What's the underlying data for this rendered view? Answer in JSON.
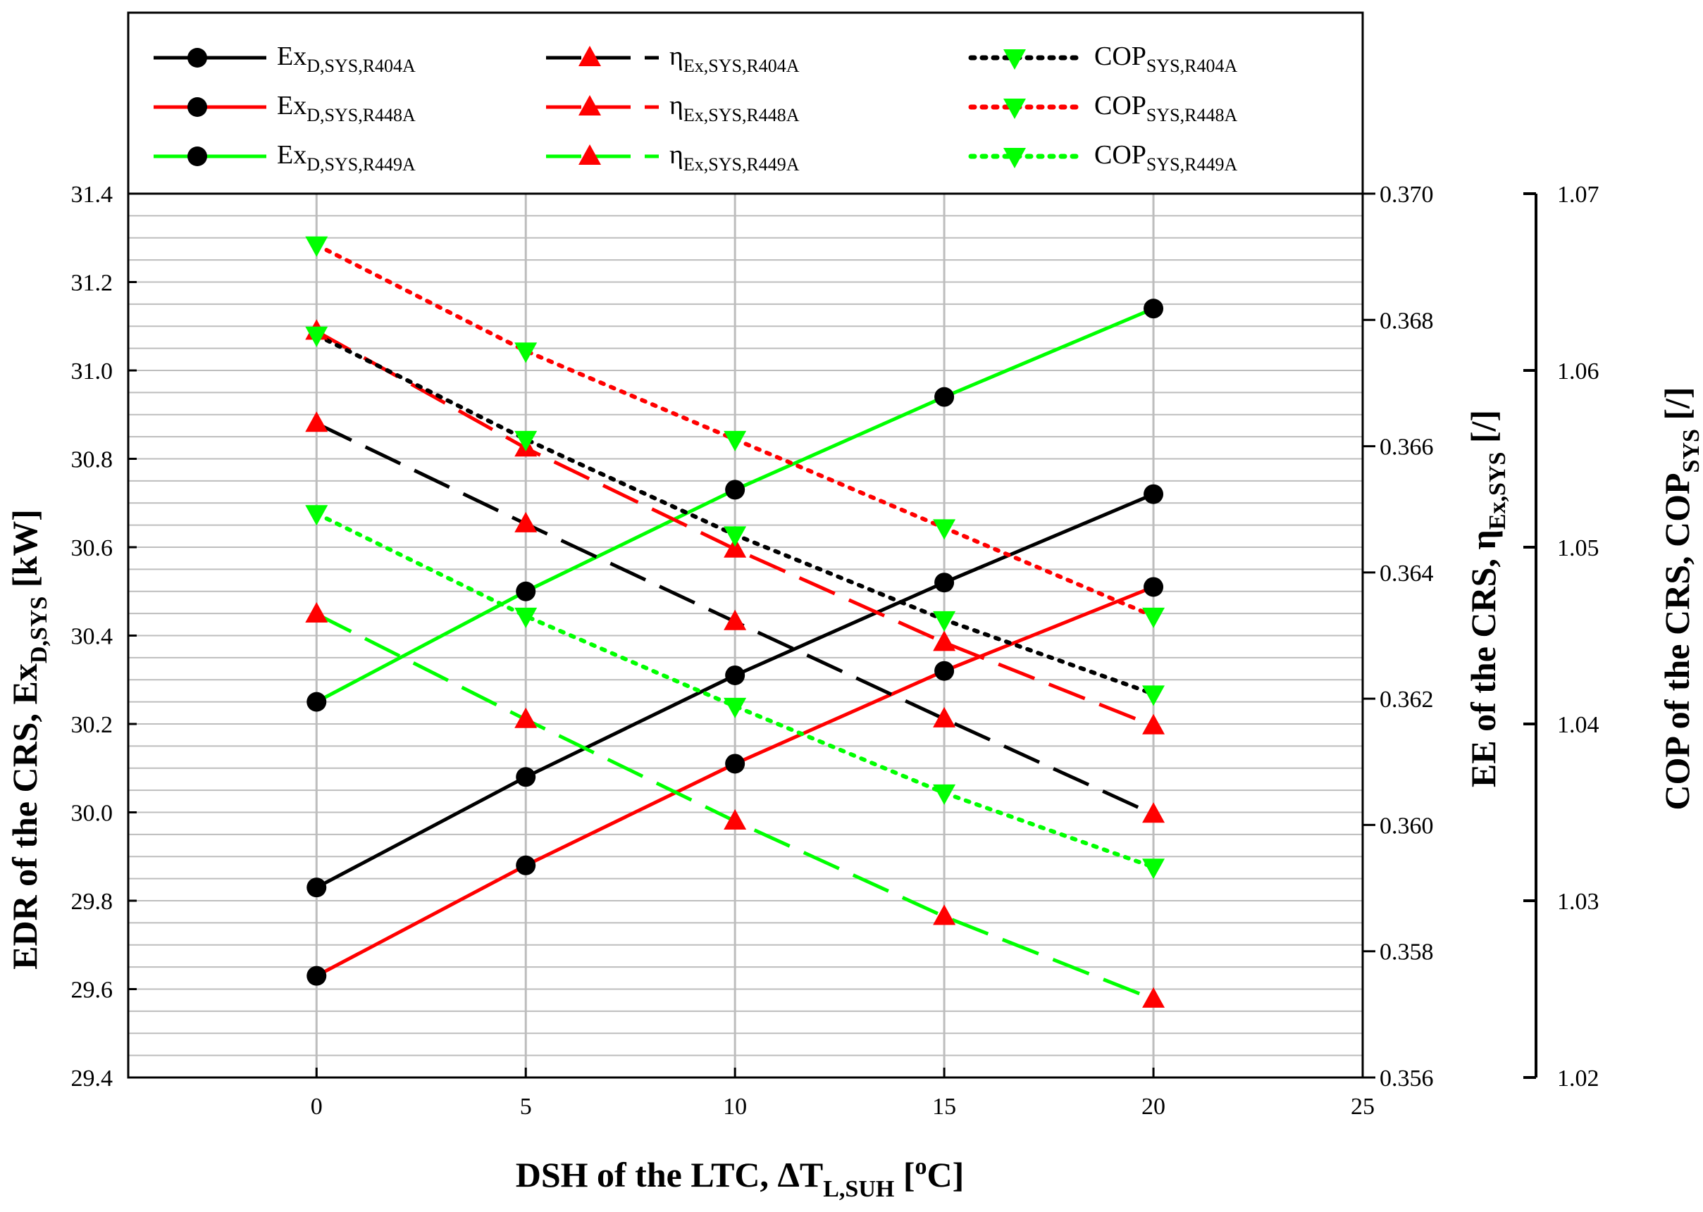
{
  "chart_data": {
    "type": "line",
    "x": [
      0,
      5,
      10,
      15,
      20
    ],
    "xlim": [
      -4.5,
      25
    ],
    "x_ticks": [
      "0",
      "5",
      "10",
      "15",
      "20",
      "25"
    ],
    "xlabel": {
      "main": "DSH of the LTC, ΔT",
      "sub": "L,SUH",
      "open": " [",
      "sup": "o",
      "unit": "C]"
    },
    "left_axis": {
      "label": {
        "main": "EDR of the CRS, Ex",
        "sub": "D,SYS",
        "unit": " [kW]"
      },
      "ylim": [
        29.4,
        31.4
      ],
      "ticks": [
        "29.4",
        "29.6",
        "29.8",
        "30.0",
        "30.2",
        "30.4",
        "30.6",
        "30.8",
        "31.0",
        "31.2",
        "31.4"
      ]
    },
    "mid_axis": {
      "label": {
        "main": "EE of the CRS, η",
        "sub": "Ex,SYS",
        "unit": " [/]"
      },
      "ylim": [
        0.356,
        0.37
      ],
      "ticks": [
        "0.356",
        "0.358",
        "0.360",
        "0.362",
        "0.364",
        "0.366",
        "0.368",
        "0.370"
      ]
    },
    "right_axis": {
      "label": {
        "main": "COP of the CRS, COP",
        "sub": "SYS",
        "unit": " [/]"
      },
      "ylim": [
        1.02,
        1.07
      ],
      "ticks": [
        "1.02",
        "1.03",
        "1.04",
        "1.05",
        "1.06",
        "1.07"
      ]
    },
    "colors": {
      "R404A": "#000000",
      "R448A": "#ff0000",
      "R449A": "#00ff00"
    },
    "series": [
      {
        "name": "Ex_D,SYS,R404A",
        "legend_main": "Ex",
        "legend_sub": "D,SYS,R404A",
        "axis": "left",
        "style": "solid",
        "marker": "circle",
        "line_color": "#000000",
        "marker_color": "#000000",
        "values": [
          29.83,
          30.08,
          30.31,
          30.52,
          30.72
        ]
      },
      {
        "name": "Ex_D,SYS,R448A",
        "legend_main": "Ex",
        "legend_sub": "D,SYS,R448A",
        "axis": "left",
        "style": "solid",
        "marker": "circle",
        "line_color": "#ff0000",
        "marker_color": "#000000",
        "values": [
          29.63,
          29.88,
          30.11,
          30.32,
          30.51
        ]
      },
      {
        "name": "Ex_D,SYS,R449A",
        "legend_main": "Ex",
        "legend_sub": "D,SYS,R449A",
        "axis": "left",
        "style": "solid",
        "marker": "circle",
        "line_color": "#00ff00",
        "marker_color": "#000000",
        "values": [
          30.25,
          30.5,
          30.73,
          30.94,
          31.14
        ]
      },
      {
        "name": "eta_Ex,SYS,R404A",
        "legend_main": "η",
        "legend_sub": "Ex,SYS,R404A",
        "axis": "mid",
        "style": "dashed",
        "marker": "triangle-up",
        "line_color": "#000000",
        "marker_color": "#ff0000",
        "values": [
          0.36636,
          0.36477,
          0.36322,
          0.36168,
          0.36017
        ]
      },
      {
        "name": "eta_Ex,SYS,R448A",
        "legend_main": "η",
        "legend_sub": "Ex,SYS,R448A",
        "axis": "mid",
        "style": "dashed",
        "marker": "triangle-up",
        "line_color": "#ff0000",
        "marker_color": "#ff0000",
        "values": [
          0.36782,
          0.36597,
          0.36437,
          0.36289,
          0.36157
        ]
      },
      {
        "name": "eta_Ex,SYS,R449A",
        "legend_main": "η",
        "legend_sub": "Ex,SYS,R449A",
        "axis": "mid",
        "style": "dashed",
        "marker": "triangle-up",
        "line_color": "#00ff00",
        "marker_color": "#ff0000",
        "values": [
          0.36334,
          0.36167,
          0.36006,
          0.35855,
          0.35724
        ]
      },
      {
        "name": "COP_SYS,R404A",
        "legend_main": "COP",
        "legend_sub": "SYS,R404A",
        "axis": "right",
        "style": "dotted",
        "marker": "triangle-down",
        "line_color": "#000000",
        "marker_color": "#00ff00",
        "values": [
          1.062,
          1.0561,
          1.0507,
          1.0459,
          1.0417
        ]
      },
      {
        "name": "COP_SYS,R448A",
        "legend_main": "COP",
        "legend_sub": "SYS,R448A",
        "axis": "right",
        "style": "dotted",
        "marker": "triangle-down",
        "line_color": "#ff0000",
        "marker_color": "#00ff00",
        "values": [
          1.0671,
          1.0611,
          1.0561,
          1.0511,
          1.0461
        ]
      },
      {
        "name": "COP_SYS,R449A",
        "legend_main": "COP",
        "legend_sub": "SYS,R449A",
        "axis": "right",
        "style": "dotted",
        "marker": "triangle-down",
        "line_color": "#00ff00",
        "marker_color": "#00ff00",
        "values": [
          1.0519,
          1.0461,
          1.041,
          1.0361,
          1.0319
        ]
      }
    ]
  }
}
